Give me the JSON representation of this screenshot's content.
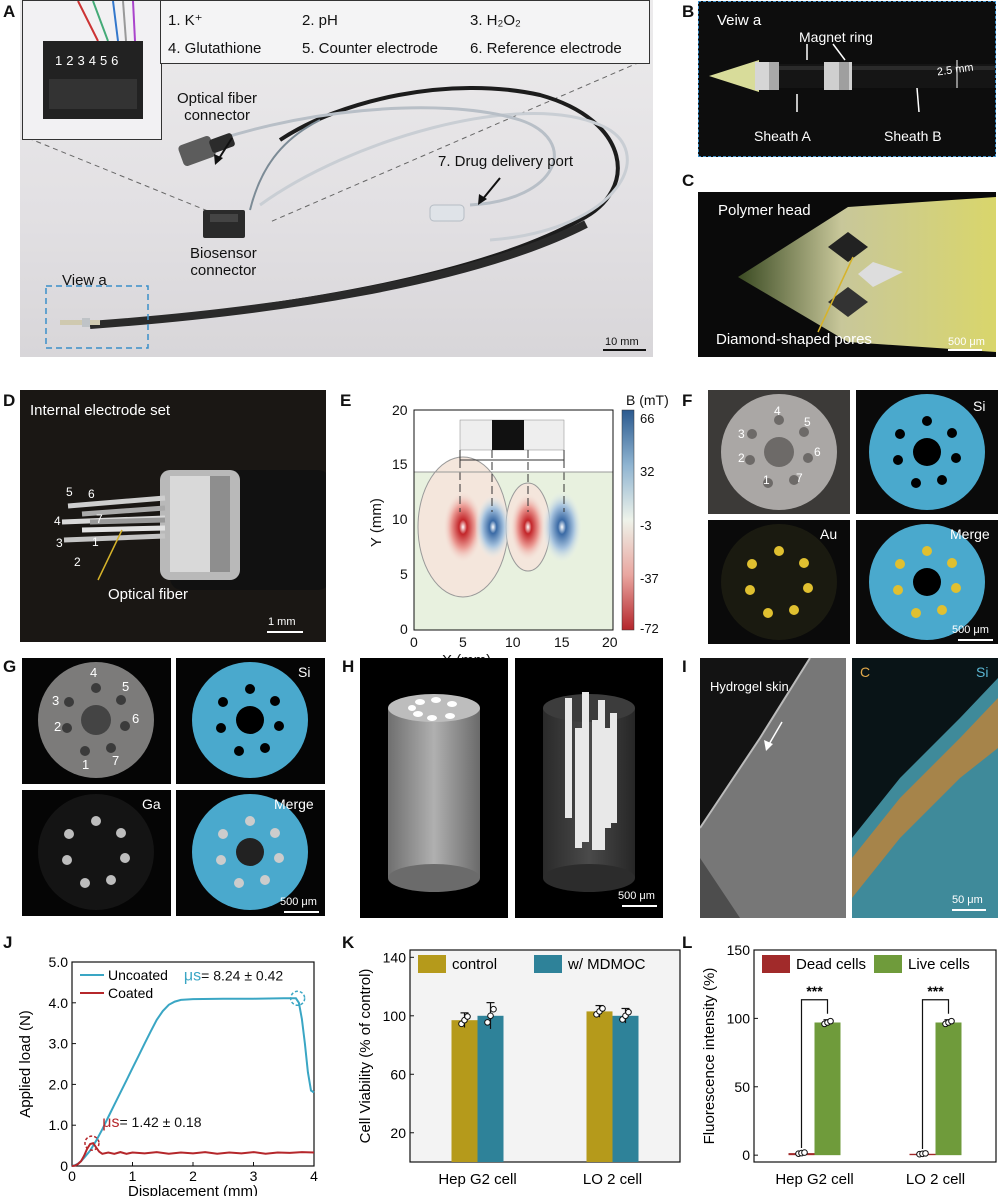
{
  "panels": {
    "A": {
      "label": "A",
      "pin_legend": [
        "1. K⁺",
        "2. pH",
        "3. H₂O₂",
        "4. Glutathione",
        "5. Counter electrode",
        "6. Reference electrode"
      ],
      "pin_numbers": [
        "1",
        "2",
        "3",
        "4",
        "5",
        "6"
      ],
      "optical_connector_label": "Optical fiber\nconnector",
      "drug_port_label": "7. Drug delivery port",
      "biosensor_label": "Biosensor\nconnector",
      "view_label": "View a",
      "scale_label": "10 mm"
    },
    "B": {
      "label": "B",
      "view_label": "Veiw a",
      "magnet_label": "Magnet ring",
      "dimension_label": "2.5 mm",
      "sheath_a_label": "Sheath A",
      "sheath_b_label": "Sheath B"
    },
    "C": {
      "label": "C",
      "head_label": "Polymer head",
      "pores_label": "Diamond-shaped pores",
      "scale_label": "500 μm"
    },
    "D": {
      "label": "D",
      "title": "Internal electrode set",
      "fiber_label": "Optical fiber",
      "electrode_numbers": [
        "1",
        "2",
        "3",
        "4",
        "5",
        "6",
        "7"
      ],
      "scale_label": "1 mm"
    },
    "E": {
      "label": "E",
      "xlabel": "X (mm)",
      "ylabel": "Y (mm)",
      "colorbar_title": "B (mT)",
      "colorbar_ticks": [
        "66",
        "32",
        "-3",
        "-37",
        "-72"
      ],
      "x_ticks": [
        "0",
        "5",
        "10",
        "15",
        "20"
      ],
      "y_ticks": [
        "0",
        "5",
        "10",
        "15",
        "20"
      ]
    },
    "F": {
      "label": "F",
      "si_label": "Si",
      "au_label": "Au",
      "merge_label": "Merge",
      "hole_numbers": [
        "1",
        "2",
        "3",
        "4",
        "5",
        "6",
        "7"
      ],
      "scale_label": "500 μm"
    },
    "G": {
      "label": "G",
      "si_label": "Si",
      "ga_label": "Ga",
      "merge_label": "Merge",
      "hole_numbers": [
        "1",
        "2",
        "3",
        "4",
        "5",
        "6",
        "7"
      ],
      "scale_label": "500 μm"
    },
    "H": {
      "label": "H",
      "scale_label": "500 μm"
    },
    "I": {
      "label": "I",
      "skin_label": "Hydrogel skin",
      "c_label": "C",
      "si_label": "Si",
      "scale_label": "50 μm"
    },
    "J": {
      "label": "J"
    },
    "K": {
      "label": "K"
    },
    "L": {
      "label": "L"
    }
  },
  "chart_data": [
    {
      "id": "J",
      "type": "line",
      "xlabel": "Displacement (mm)",
      "ylabel": "Applied load (N)",
      "xlim": [
        0,
        4
      ],
      "ylim": [
        0,
        5
      ],
      "x_ticks": [
        "0",
        "1",
        "2",
        "3",
        "4"
      ],
      "y_ticks": [
        "0",
        "1.0",
        "2.0",
        "3.0",
        "4.0",
        "5.0"
      ],
      "legend_position": "top-left",
      "series": [
        {
          "name": "Uncoated",
          "color": "#3aa6c4",
          "points": [
            [
              0,
              0
            ],
            [
              0.05,
              0.02
            ],
            [
              0.1,
              0.06
            ],
            [
              0.15,
              0.12
            ],
            [
              0.2,
              0.2
            ],
            [
              0.3,
              0.38
            ],
            [
              0.4,
              0.62
            ],
            [
              0.5,
              0.9
            ],
            [
              0.6,
              1.2
            ],
            [
              0.7,
              1.5
            ],
            [
              0.8,
              1.8
            ],
            [
              0.9,
              2.1
            ],
            [
              1.0,
              2.4
            ],
            [
              1.1,
              2.7
            ],
            [
              1.2,
              3.0
            ],
            [
              1.3,
              3.3
            ],
            [
              1.4,
              3.58
            ],
            [
              1.5,
              3.8
            ],
            [
              1.6,
              3.95
            ],
            [
              1.7,
              4.03
            ],
            [
              1.8,
              4.07
            ],
            [
              2.0,
              4.09
            ],
            [
              2.5,
              4.1
            ],
            [
              3.0,
              4.1
            ],
            [
              3.5,
              4.11
            ],
            [
              3.7,
              4.11
            ],
            [
              3.75,
              4.0
            ],
            [
              3.8,
              3.6
            ],
            [
              3.85,
              3.0
            ],
            [
              3.9,
              2.3
            ],
            [
              3.95,
              1.85
            ],
            [
              4.0,
              1.8
            ]
          ]
        },
        {
          "name": "Coated",
          "color": "#b5272b",
          "points": [
            [
              0,
              0
            ],
            [
              0.05,
              0.01
            ],
            [
              0.1,
              0.05
            ],
            [
              0.15,
              0.12
            ],
            [
              0.2,
              0.25
            ],
            [
              0.25,
              0.42
            ],
            [
              0.3,
              0.54
            ],
            [
              0.35,
              0.56
            ],
            [
              0.4,
              0.45
            ],
            [
              0.45,
              0.35
            ],
            [
              0.5,
              0.3
            ],
            [
              0.6,
              0.33
            ],
            [
              0.7,
              0.3
            ],
            [
              0.8,
              0.34
            ],
            [
              0.9,
              0.3
            ],
            [
              1.0,
              0.33
            ],
            [
              1.2,
              0.31
            ],
            [
              1.4,
              0.34
            ],
            [
              1.6,
              0.3
            ],
            [
              1.8,
              0.33
            ],
            [
              2.0,
              0.31
            ],
            [
              2.2,
              0.34
            ],
            [
              2.4,
              0.3
            ],
            [
              2.6,
              0.33
            ],
            [
              2.8,
              0.31
            ],
            [
              3.0,
              0.34
            ],
            [
              3.2,
              0.3
            ],
            [
              3.4,
              0.33
            ],
            [
              3.6,
              0.32
            ],
            [
              3.8,
              0.34
            ],
            [
              4.0,
              0.33
            ]
          ]
        }
      ],
      "annotations": [
        {
          "prefix": "μs",
          "text": "= 8.24 ± 0.42",
          "color": "#3aa6c4",
          "at": [
            3.73,
            4.11
          ]
        },
        {
          "prefix": "μs",
          "text": "= 1.42 ± 0.18",
          "color": "#b5272b",
          "at": [
            0.33,
            0.56
          ]
        }
      ]
    },
    {
      "id": "K",
      "type": "bar",
      "ylabel": "Cell Viability (% of control)",
      "categories": [
        "Hep G2 cell",
        "LO 2 cell"
      ],
      "ylim": [
        0,
        145
      ],
      "y_ticks": [
        20,
        60,
        100,
        140
      ],
      "legend_position": "top",
      "series": [
        {
          "name": "control",
          "color": "#b59a1b",
          "values": [
            97,
            103
          ],
          "errors": [
            5,
            4
          ]
        },
        {
          "name": "w/ MDMOC",
          "color": "#2e8299",
          "values": [
            100,
            100
          ],
          "errors": [
            9,
            5
          ]
        }
      ]
    },
    {
      "id": "L",
      "type": "bar",
      "ylabel": "Fluorescence intensity (%)",
      "categories": [
        "Hep G2 cell",
        "LO 2 cell"
      ],
      "ylim": [
        -5,
        150
      ],
      "y_ticks": [
        0,
        50,
        100,
        150
      ],
      "legend_position": "top",
      "series": [
        {
          "name": "Dead cells",
          "color": "#a12a2a",
          "values": [
            1.5,
            1.0
          ],
          "errors": [
            0.8,
            0.6
          ]
        },
        {
          "name": "Live cells",
          "color": "#6f9b3b",
          "values": [
            97,
            97
          ],
          "errors": [
            2,
            2
          ]
        }
      ],
      "significance": "***"
    }
  ]
}
